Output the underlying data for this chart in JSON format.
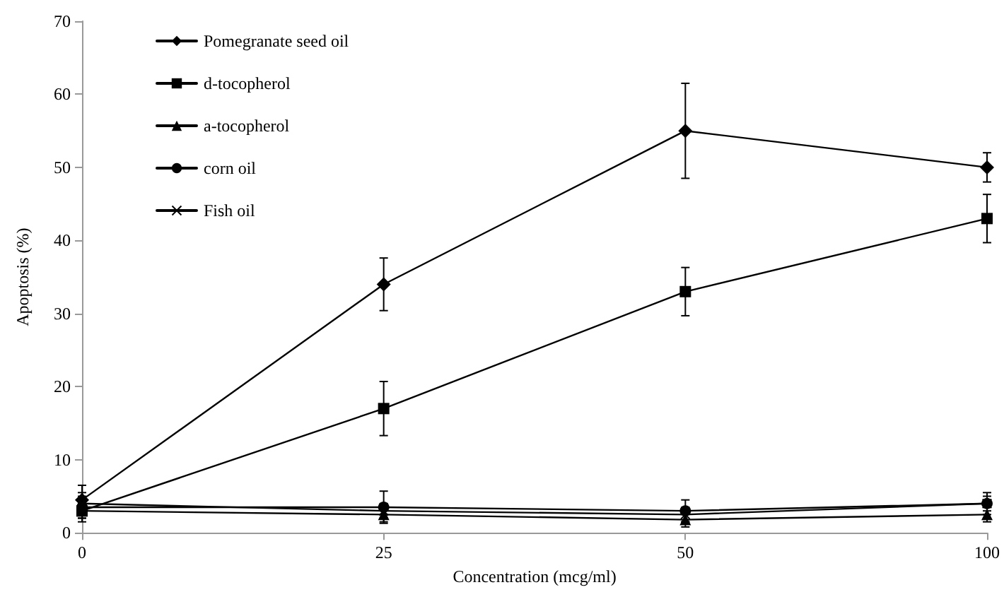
{
  "chart_data": {
    "type": "line",
    "xlabel": "Concentration (mcg/ml)",
    "ylabel": "Apoptosis (%)",
    "categories": [
      "0",
      "25",
      "50",
      "100"
    ],
    "ylim": [
      0,
      70
    ],
    "yticks": [
      0,
      10,
      20,
      30,
      40,
      50,
      60,
      70
    ],
    "grid": false,
    "legend": "top left",
    "line_style": "solid",
    "series": [
      {
        "name": "Pomegranate seed oil",
        "color": "#000000",
        "marker": "diamond",
        "values": [
          4.5,
          34,
          55,
          50
        ],
        "errors": [
          2,
          3.6,
          6.5,
          2
        ]
      },
      {
        "name": "d-tocopherol",
        "color": "#010101",
        "marker": "square",
        "values": [
          3,
          17,
          33,
          43
        ],
        "errors": [
          1,
          3.7,
          3.3,
          3.3
        ]
      },
      {
        "name": "a-tocopherol",
        "color": "#020202",
        "marker": "triangle",
        "values": [
          3,
          2.5,
          1.8,
          2.5
        ],
        "errors": [
          1,
          1,
          1,
          1
        ]
      },
      {
        "name": "corn oil",
        "color": "#030303",
        "marker": "circle",
        "values": [
          3.5,
          3.5,
          3,
          4
        ],
        "errors": [
          2,
          2.2,
          1.5,
          1.5
        ]
      },
      {
        "name": "Fish oil",
        "color": "#040404",
        "marker": "cross",
        "values": [
          4,
          3,
          2.5,
          4
        ],
        "errors": [
          1,
          1,
          1,
          1
        ]
      }
    ]
  }
}
